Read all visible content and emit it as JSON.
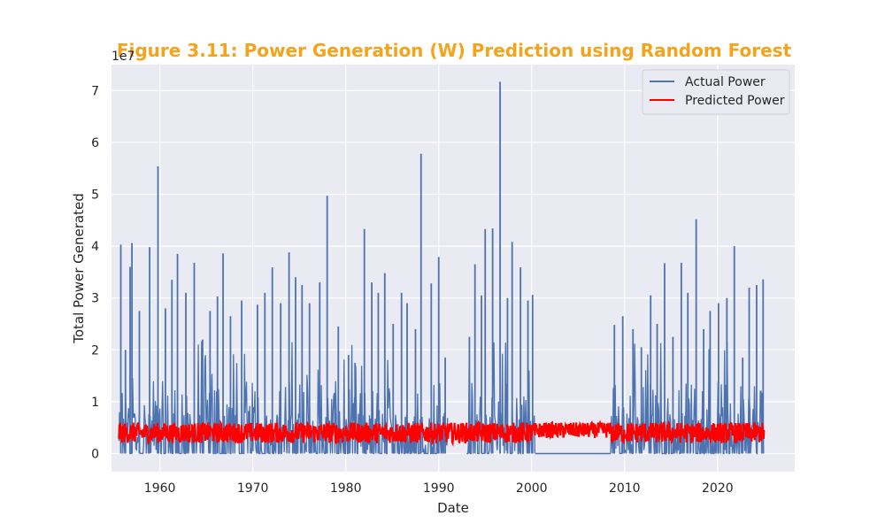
{
  "colors": {
    "title": "#f5a31a",
    "plot_background": "#eaeaf2",
    "grid": "#ffffff",
    "actual_series": "#4c72b0",
    "predicted_series": "#ff0000"
  },
  "chart_data": {
    "type": "line",
    "title": "Figure 3.11: Power Generation (W) Prediction using Random Forest",
    "xlabel": "Date",
    "ylabel": "Total Power Generated",
    "y_offset_label": "1e7",
    "xlim": [
      1954.8,
      2028.3
    ],
    "ylim": [
      -3.5,
      75
    ],
    "y_scale_note": "values shown in units of 1e7",
    "x_ticks": [
      "1960",
      "1970",
      "1980",
      "1990",
      "2000",
      "2010",
      "2020"
    ],
    "x_tick_values": [
      1960,
      1970,
      1980,
      1990,
      2000,
      2010,
      2020
    ],
    "y_ticks": [
      "0",
      "1",
      "2",
      "3",
      "4",
      "5",
      "6",
      "7"
    ],
    "y_tick_values": [
      0,
      10,
      20,
      30,
      40,
      50,
      60,
      70
    ],
    "grid": true,
    "legend_position": "top-right",
    "legend": [
      "Actual Power",
      "Predicted Power"
    ],
    "series": [
      {
        "name": "Actual Power",
        "peaks": [
          [
            1955.8,
            40.3
          ],
          [
            1956.3,
            20.0
          ],
          [
            1956.8,
            36.0
          ],
          [
            1957.0,
            40.6
          ],
          [
            1957.8,
            27.5
          ],
          [
            1958.9,
            39.8
          ],
          [
            1959.8,
            55.4
          ],
          [
            1960.6,
            28.0
          ],
          [
            1961.3,
            33.5
          ],
          [
            1961.9,
            38.5
          ],
          [
            1962.8,
            31.0
          ],
          [
            1963.7,
            36.8
          ],
          [
            1964.6,
            22.0
          ],
          [
            1965.4,
            27.5
          ],
          [
            1966.2,
            30.3
          ],
          [
            1966.8,
            38.6
          ],
          [
            1967.6,
            26.5
          ],
          [
            1968.8,
            29.5
          ],
          [
            1970.5,
            28.7
          ],
          [
            1971.3,
            31.0
          ],
          [
            1972.1,
            35.9
          ],
          [
            1973.0,
            29.0
          ],
          [
            1973.9,
            38.8
          ],
          [
            1974.6,
            34.0
          ],
          [
            1975.3,
            32.5
          ],
          [
            1976.1,
            29.0
          ],
          [
            1977.2,
            33.0
          ],
          [
            1978.0,
            49.7
          ],
          [
            1979.2,
            24.5
          ],
          [
            1980.3,
            19.0
          ],
          [
            1981.0,
            17.5
          ],
          [
            1982.0,
            43.3
          ],
          [
            1982.8,
            33.0
          ],
          [
            1983.5,
            31.0
          ],
          [
            1984.2,
            34.8
          ],
          [
            1985.1,
            25.0
          ],
          [
            1986.0,
            31.0
          ],
          [
            1986.6,
            29.0
          ],
          [
            1987.5,
            24.0
          ],
          [
            1988.1,
            57.8
          ],
          [
            1989.2,
            32.8
          ],
          [
            1990.0,
            37.9
          ],
          [
            1990.7,
            18.5
          ],
          [
            1993.3,
            22.5
          ],
          [
            1993.9,
            36.5
          ],
          [
            1994.6,
            30.5
          ],
          [
            1995.0,
            43.3
          ],
          [
            1995.8,
            43.4
          ],
          [
            1996.6,
            71.7
          ],
          [
            1997.4,
            30.0
          ],
          [
            1997.9,
            40.8
          ],
          [
            1998.8,
            35.9
          ],
          [
            1999.6,
            29.5
          ],
          [
            2000.1,
            30.6
          ],
          [
            2008.9,
            24.8
          ],
          [
            2009.8,
            26.5
          ],
          [
            2010.9,
            24.0
          ],
          [
            2011.8,
            20.5
          ],
          [
            2012.8,
            30.5
          ],
          [
            2013.5,
            25.0
          ],
          [
            2014.3,
            36.7
          ],
          [
            2015.2,
            22.5
          ],
          [
            2016.1,
            36.8
          ],
          [
            2016.8,
            31.0
          ],
          [
            2017.7,
            45.2
          ],
          [
            2018.5,
            24.0
          ],
          [
            2019.2,
            27.5
          ],
          [
            2020.1,
            29.0
          ],
          [
            2021.0,
            30.0
          ],
          [
            2021.8,
            40.0
          ],
          [
            2022.7,
            18.5
          ],
          [
            2023.4,
            32.0
          ],
          [
            2024.2,
            32.5
          ],
          [
            2024.9,
            33.6
          ]
        ],
        "segments": [
          [
            1955.6,
            1991.0
          ],
          [
            1993.0,
            2000.4
          ],
          [
            2008.5,
            2025.0
          ]
        ],
        "baseline_gap": [
          2000.4,
          2008.5
        ],
        "typical_level": [
          0,
          14
        ]
      },
      {
        "name": "Predicted Power",
        "x_range": [
          1955.6,
          2025.0
        ],
        "band": [
          2.0,
          6.0
        ],
        "plateau_range": [
          2000.4,
          2008.5
        ],
        "plateau_band": [
          3.0,
          6.0
        ]
      }
    ]
  }
}
